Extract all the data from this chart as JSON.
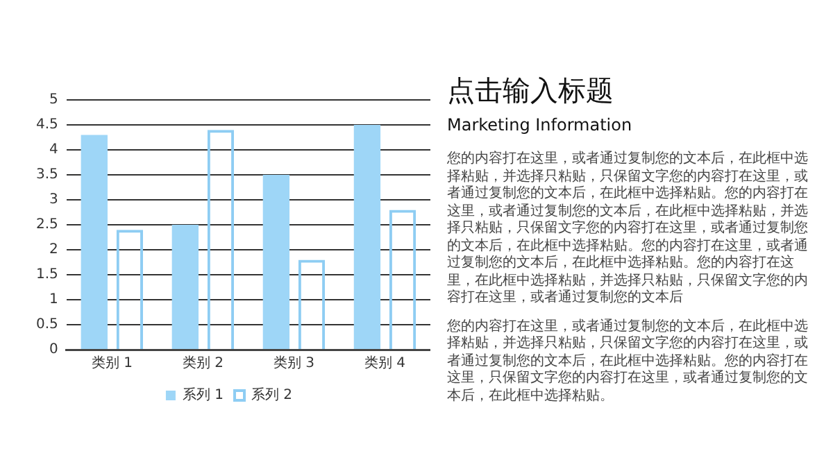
{
  "chart_data": {
    "type": "bar",
    "title": "点击输入标题",
    "subtitle": "Marketing Information",
    "categories": [
      "类别 1",
      "类别 2",
      "类别 3",
      "类别 4"
    ],
    "series": [
      {
        "name": "系列 1",
        "color": "#9ed6f7",
        "values": [
          4.3,
          2.5,
          3.5,
          4.5
        ]
      },
      {
        "name": "系列 2",
        "color": "#8ecdf3",
        "values": [
          2.4,
          4.4,
          1.8,
          2.8
        ]
      }
    ],
    "ylim": [
      0,
      5
    ],
    "yticks": [
      0,
      0.5,
      1,
      1.5,
      2,
      2.5,
      3,
      3.5,
      4,
      4.5,
      5
    ],
    "grid": "y",
    "legend": "bottom",
    "annotations": [
      "您的内容打在这里，或者通过复制您的文本后，在此框中选择粘贴，并选择只粘贴，只保留文字您的内容打在这里，或者通过复制您的文本后，在此框中选择粘贴。您的内容打在这里，或者通过复制您的文本后，在此框中选择粘贴，并选择只粘贴，只保留文字您的内容打在这里，或者通过复制您的文本后，在此框中选择粘贴。您的内容打在这里，或者通过复制您的文本后，在此框中选择粘贴。您的内容打在这里，在此框中选择粘贴，并选择只粘贴，只保留文字您的内容打在这里，或者通过复制您的文本后",
      "您的内容打在这里，或者通过复制您的文本后，在此框中选择粘贴，并选择只粘贴，只保留文字您的内容打在这里，或者通过复制您的文本后，在此框中选择粘贴。您的内容打在这里，只保留文字您的内容打在这里，或者通过复制您的文本后，在此框中选择粘贴。"
    ]
  }
}
